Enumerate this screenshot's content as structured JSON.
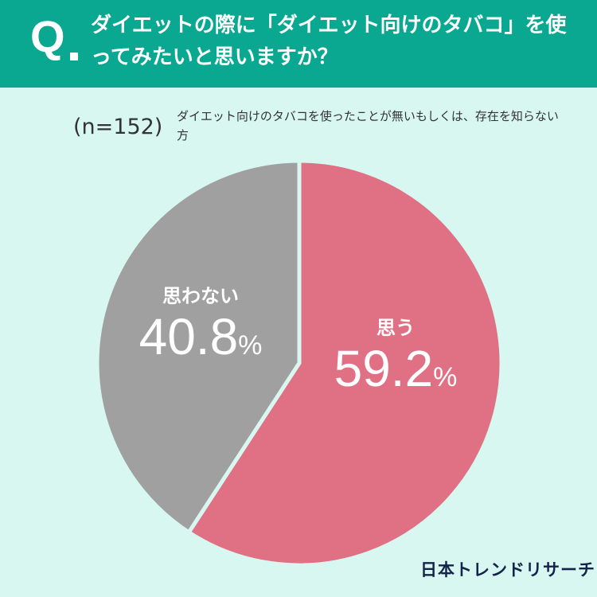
{
  "header": {
    "q_mark": "Q",
    "question": "ダイエットの際に「ダイエット向けのタバコ」を使ってみたいと思いますか？"
  },
  "sample": "(n=152)",
  "note": "ダイエット向けのタバコを使ったことが無いもしくは、存在を知らない方",
  "chart_data": {
    "type": "pie",
    "categories": [
      "思う",
      "思わない"
    ],
    "values": [
      59.2,
      40.8
    ],
    "unit": "%",
    "colors": [
      "#e07083",
      "#a0a0a0"
    ],
    "labels": [
      {
        "name": "思う",
        "value": "59.2",
        "unit": "%"
      },
      {
        "name": "思わない",
        "value": "40.8",
        "unit": "%"
      }
    ]
  },
  "brand": "日本トレンドリサーチ"
}
